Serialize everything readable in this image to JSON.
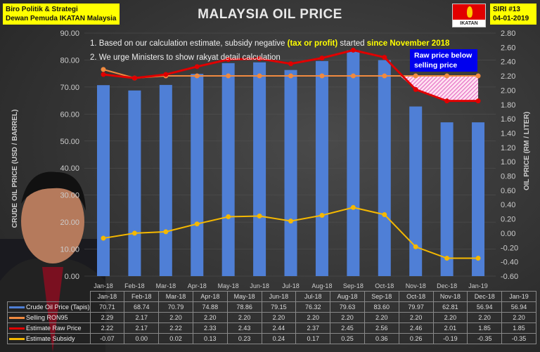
{
  "header": {
    "org_line1": "Biro Politik & Strategi",
    "org_line2": "Dewan Pemuda IKATAN Malaysia",
    "title": "MALAYSIA OIL PRICE",
    "logo_text": "IKATAN",
    "series_no": "SIRI #13",
    "date": "04-01-2019"
  },
  "notes": {
    "n1_a": "1. Based on our calculation estimate, subsidy negative ",
    "n1_b": "(tax or profit)",
    "n1_c": " started ",
    "n1_d": "since November 2018",
    "n2": "2. We urge Ministers to show rakyat detail calculation"
  },
  "callout": "Raw price below selling price",
  "colors": {
    "bar": "#4f7fd6",
    "selling": "#f08a40",
    "raw": "#e00000",
    "subsidy": "#f5b800",
    "callout_bg": "#0000ee",
    "header_bg": "#ffff00"
  },
  "chart_data": {
    "type": "bar+line",
    "categories": [
      "Jan-18",
      "Feb-18",
      "Mar-18",
      "Apr-18",
      "May-18",
      "Jun-18",
      "Jul-18",
      "Aug-18",
      "Sep-18",
      "Oct-18",
      "Nov-18",
      "Dec-18",
      "Jan-19"
    ],
    "left_axis": {
      "label": "CRUDE OIL PRICE (USD / BARREL)",
      "ylim": [
        0,
        90
      ],
      "ticks": [
        "0.00",
        "10.00",
        "20.00",
        "30.00",
        "40.00",
        "50.00",
        "60.00",
        "70.00",
        "80.00",
        "90.00"
      ]
    },
    "right_axis": {
      "label": "OIL PRICE (RM / LITER)",
      "ylim": [
        -0.6,
        2.8
      ],
      "ticks": [
        "-0.60",
        "-0.40",
        "-0.20",
        "0.00",
        "0.20",
        "0.40",
        "0.60",
        "0.80",
        "1.00",
        "1.20",
        "1.40",
        "1.60",
        "1.80",
        "2.00",
        "2.20",
        "2.40",
        "2.60",
        "2.80"
      ]
    },
    "series": [
      {
        "name": "Crude Oil Price (Tapis)",
        "type": "bar",
        "axis": "left",
        "values": [
          70.71,
          68.74,
          70.79,
          74.88,
          78.86,
          79.15,
          76.32,
          79.63,
          83.6,
          79.97,
          62.81,
          56.94,
          56.94
        ],
        "labels": [
          "70.71",
          "68.74",
          "70.79",
          "74.88",
          "78.86",
          "79.15",
          "76.32",
          "79.63",
          "83.60",
          "79.97",
          "62.81",
          "56.94",
          "56.94"
        ]
      },
      {
        "name": "Selling RON95",
        "type": "line",
        "axis": "right",
        "values": [
          2.29,
          2.17,
          2.2,
          2.2,
          2.2,
          2.2,
          2.2,
          2.2,
          2.2,
          2.2,
          2.2,
          2.2,
          2.2
        ],
        "labels": [
          "2.29",
          "2.17",
          "2.20",
          "2.20",
          "2.20",
          "2.20",
          "2.20",
          "2.20",
          "2.20",
          "2.20",
          "2.20",
          "2.20",
          "2.20"
        ]
      },
      {
        "name": "Estimate Raw Price",
        "type": "line",
        "axis": "right",
        "values": [
          2.22,
          2.17,
          2.22,
          2.33,
          2.43,
          2.44,
          2.37,
          2.45,
          2.56,
          2.46,
          2.01,
          1.85,
          1.85
        ],
        "labels": [
          "2.22",
          "2.17",
          "2.22",
          "2.33",
          "2.43",
          "2.44",
          "2.37",
          "2.45",
          "2.56",
          "2.46",
          "2.01",
          "1.85",
          "1.85"
        ]
      },
      {
        "name": "Estimate Subsidy",
        "type": "line",
        "axis": "right",
        "values": [
          -0.07,
          0.0,
          0.02,
          0.13,
          0.23,
          0.24,
          0.17,
          0.25,
          0.36,
          0.26,
          -0.19,
          -0.35,
          -0.35
        ],
        "labels": [
          "-0.07",
          "0.00",
          "0.02",
          "0.13",
          "0.23",
          "0.24",
          "0.17",
          "0.25",
          "0.36",
          "0.26",
          "-0.19",
          "-0.35",
          "-0.35"
        ]
      }
    ]
  }
}
